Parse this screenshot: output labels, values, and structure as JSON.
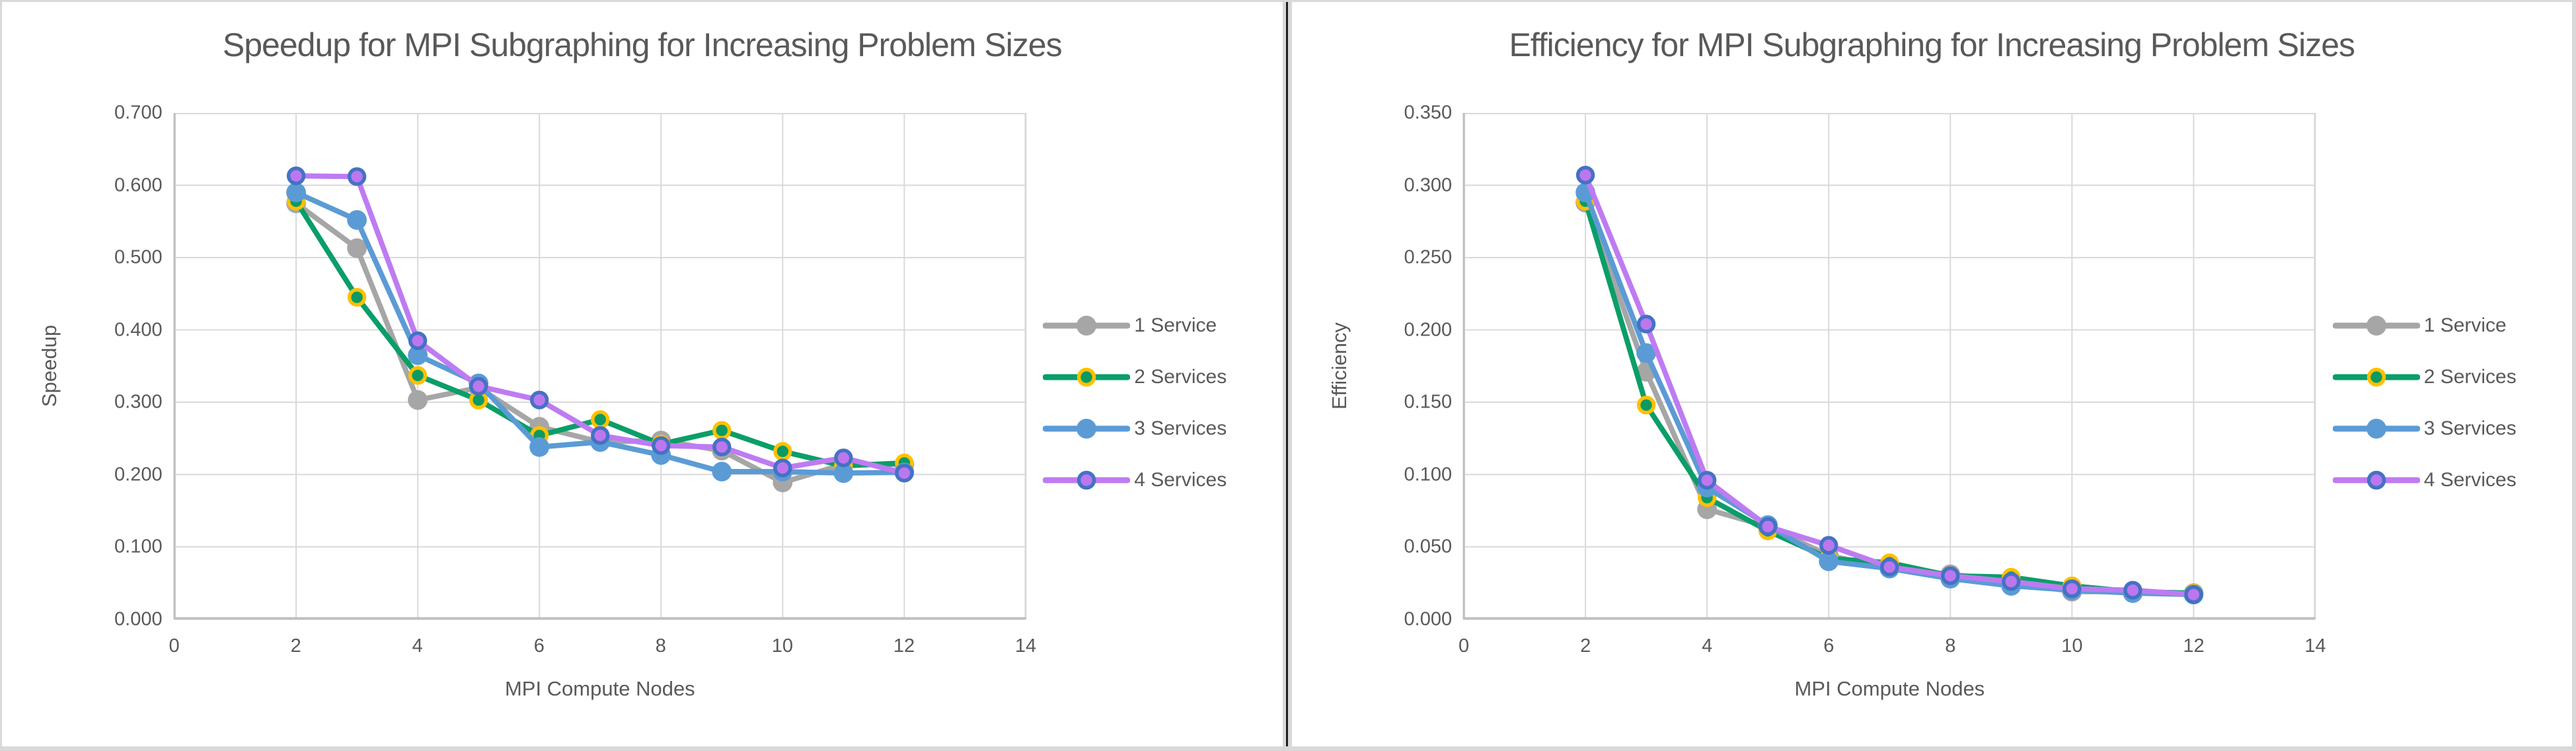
{
  "page": {
    "background": "#FFFFFF",
    "frame_color": "#D9D9D9",
    "divider_line_color": "#1F1F1F",
    "text_color": "#595959"
  },
  "chart_data": [
    {
      "type": "line",
      "title": "Speedup for MPI Subgraphing for Increasing Problem Sizes",
      "xlabel": "MPI Compute Nodes",
      "ylabel": "Speedup",
      "xlim": [
        0,
        14
      ],
      "xstep": 2,
      "ylim": [
        0.0,
        0.7
      ],
      "ystep": 0.1,
      "y_tick_decimals": 3,
      "grid": true,
      "grid_color": "#D9D9D9",
      "axis_color": "#BFBFBF",
      "legend_position": "right",
      "x": [
        2,
        3,
        4,
        5,
        6,
        7,
        8,
        9,
        10,
        11,
        12
      ],
      "series": [
        {
          "name": "1 Service",
          "color": "#A6A6A6",
          "marker_fill": "#A6A6A6",
          "marker_ring": "#A6A6A6",
          "values": [
            0.575,
            0.513,
            0.303,
            0.32,
            0.266,
            0.245,
            0.247,
            0.233,
            0.189,
            0.214,
            0.214
          ]
        },
        {
          "name": "2 Services",
          "color": "#0A9E68",
          "marker_fill": "#0B9A63",
          "marker_ring": "#FFC000",
          "values": [
            0.578,
            0.445,
            0.337,
            0.303,
            0.254,
            0.276,
            0.242,
            0.261,
            0.232,
            0.212,
            0.216
          ]
        },
        {
          "name": "3 Services",
          "color": "#5B9BD5",
          "marker_fill": "#5B9BD5",
          "marker_ring": "#5B9BD5",
          "values": [
            0.59,
            0.552,
            0.365,
            0.326,
            0.238,
            0.245,
            0.227,
            0.204,
            0.204,
            0.202,
            0.203
          ]
        },
        {
          "name": "4 Services",
          "color": "#BE7BF2",
          "marker_fill": "#BC77EF",
          "marker_ring": "#4472C4",
          "values": [
            0.613,
            0.612,
            0.385,
            0.322,
            0.303,
            0.254,
            0.24,
            0.238,
            0.209,
            0.223,
            0.202
          ]
        }
      ]
    },
    {
      "type": "line",
      "title": "Efficiency for MPI Subgraphing for Increasing Problem Sizes",
      "xlabel": "MPI Compute Nodes",
      "ylabel": "Efficiency",
      "xlim": [
        0,
        14
      ],
      "xstep": 2,
      "ylim": [
        0.0,
        0.35
      ],
      "ystep": 0.05,
      "y_tick_decimals": 3,
      "grid": true,
      "grid_color": "#D9D9D9",
      "axis_color": "#BFBFBF",
      "legend_position": "right",
      "x": [
        2,
        3,
        4,
        5,
        6,
        7,
        8,
        9,
        10,
        11,
        12
      ],
      "series": [
        {
          "name": "1 Service",
          "color": "#A6A6A6",
          "marker_fill": "#A6A6A6",
          "marker_ring": "#A6A6A6",
          "values": [
            0.288,
            0.171,
            0.076,
            0.064,
            0.044,
            0.035,
            0.031,
            0.026,
            0.019,
            0.019,
            0.018
          ]
        },
        {
          "name": "2 Services",
          "color": "#0A9E68",
          "marker_fill": "#0B9A63",
          "marker_ring": "#FFC000",
          "values": [
            0.289,
            0.148,
            0.084,
            0.061,
            0.042,
            0.039,
            0.03,
            0.029,
            0.023,
            0.019,
            0.018
          ]
        },
        {
          "name": "3 Services",
          "color": "#5B9BD5",
          "marker_fill": "#5B9BD5",
          "marker_ring": "#5B9BD5",
          "values": [
            0.295,
            0.184,
            0.091,
            0.065,
            0.04,
            0.035,
            0.028,
            0.023,
            0.02,
            0.018,
            0.017
          ]
        },
        {
          "name": "4 Services",
          "color": "#BE7BF2",
          "marker_fill": "#BC77EF",
          "marker_ring": "#4472C4",
          "values": [
            0.307,
            0.204,
            0.096,
            0.064,
            0.051,
            0.036,
            0.03,
            0.026,
            0.021,
            0.02,
            0.017
          ]
        }
      ]
    }
  ]
}
